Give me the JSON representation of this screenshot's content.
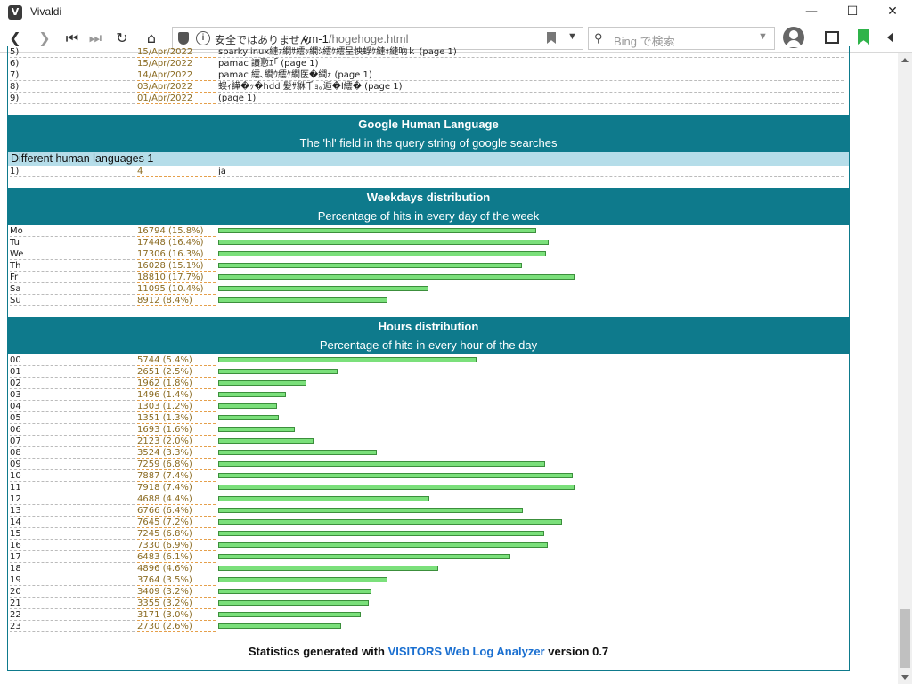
{
  "window": {
    "title": "Vivaldi"
  },
  "addressbar": {
    "security_text": "安全ではありません",
    "host": "vm-1",
    "path": "/hogehoge.html"
  },
  "search": {
    "placeholder": "Bing で検索"
  },
  "colors": {
    "accent": "#0e7a8c",
    "bar": "#7be07b",
    "link": "#1a6fd0"
  },
  "referers": [
    {
      "idx": "5)",
      "date": "15/Apr/2022",
      "text": "sparkylinux縺ｧ繝ｻ繧ｯ繝ｼ繧ｹ繧呈怏蜉ｹ縺ｫ縺吶ｋ (page 1)"
    },
    {
      "idx": "6)",
      "date": "15/Apr/2022",
      "text": "pamac 讀懃ｴ｢ (page 1)"
    },
    {
      "idx": "7)",
      "date": "14/Apr/2022",
      "text": "pamac 繧､繝ｳ繧ｹ繝医�繝ｫ (page 1)"
    },
    {
      "idx": "8)",
      "date": "03/Apr/2022",
      "text": "蜈ｨ譁�ｯ�hdd 髮ｻ貅千ｮ｡逅�l繧� (page 1)"
    },
    {
      "idx": "9)",
      "date": "01/Apr/2022",
      "text": "(page 1)"
    }
  ],
  "languages": {
    "title": "Google Human Language",
    "subtitle": "The 'hl' field in the query string of google searches",
    "summary": "Different human languages 1",
    "rows": [
      {
        "idx": "1)",
        "count": "4",
        "lang": "ja"
      }
    ]
  },
  "weekdays": {
    "title": "Weekdays distribution",
    "subtitle": "Percentage of hits in every day of the week",
    "rows": [
      {
        "label": "Mo",
        "value": "16794 (15.8%)",
        "hits": 16794
      },
      {
        "label": "Tu",
        "value": "17448 (16.4%)",
        "hits": 17448
      },
      {
        "label": "We",
        "value": "17306 (16.3%)",
        "hits": 17306
      },
      {
        "label": "Th",
        "value": "16028 (15.1%)",
        "hits": 16028
      },
      {
        "label": "Fr",
        "value": "18810 (17.7%)",
        "hits": 18810
      },
      {
        "label": "Sa",
        "value": "11095 (10.4%)",
        "hits": 11095
      },
      {
        "label": "Su",
        "value": "8912 (8.4%)",
        "hits": 8912
      }
    ]
  },
  "hours": {
    "title": "Hours distribution",
    "subtitle": "Percentage of hits in every hour of the day",
    "rows": [
      {
        "label": "00",
        "value": "5744 (5.4%)",
        "hits": 5744
      },
      {
        "label": "01",
        "value": "2651 (2.5%)",
        "hits": 2651
      },
      {
        "label": "02",
        "value": "1962 (1.8%)",
        "hits": 1962
      },
      {
        "label": "03",
        "value": "1496 (1.4%)",
        "hits": 1496
      },
      {
        "label": "04",
        "value": "1303 (1.2%)",
        "hits": 1303
      },
      {
        "label": "05",
        "value": "1351 (1.3%)",
        "hits": 1351
      },
      {
        "label": "06",
        "value": "1693 (1.6%)",
        "hits": 1693
      },
      {
        "label": "07",
        "value": "2123 (2.0%)",
        "hits": 2123
      },
      {
        "label": "08",
        "value": "3524 (3.3%)",
        "hits": 3524
      },
      {
        "label": "09",
        "value": "7259 (6.8%)",
        "hits": 7259
      },
      {
        "label": "10",
        "value": "7887 (7.4%)",
        "hits": 7887
      },
      {
        "label": "11",
        "value": "7918 (7.4%)",
        "hits": 7918
      },
      {
        "label": "12",
        "value": "4688 (4.4%)",
        "hits": 4688
      },
      {
        "label": "13",
        "value": "6766 (6.4%)",
        "hits": 6766
      },
      {
        "label": "14",
        "value": "7645 (7.2%)",
        "hits": 7645
      },
      {
        "label": "15",
        "value": "7245 (6.8%)",
        "hits": 7245
      },
      {
        "label": "16",
        "value": "7330 (6.9%)",
        "hits": 7330
      },
      {
        "label": "17",
        "value": "6483 (6.1%)",
        "hits": 6483
      },
      {
        "label": "18",
        "value": "4896 (4.6%)",
        "hits": 4896
      },
      {
        "label": "19",
        "value": "3764 (3.5%)",
        "hits": 3764
      },
      {
        "label": "20",
        "value": "3409 (3.2%)",
        "hits": 3409
      },
      {
        "label": "21",
        "value": "3355 (3.2%)",
        "hits": 3355
      },
      {
        "label": "22",
        "value": "3171 (3.0%)",
        "hits": 3171
      },
      {
        "label": "23",
        "value": "2730 (2.6%)",
        "hits": 2730
      }
    ]
  },
  "footer": {
    "prefix": "Statistics generated with",
    "link": "VISITORS Web Log Analyzer",
    "suffix": "version 0.7"
  }
}
